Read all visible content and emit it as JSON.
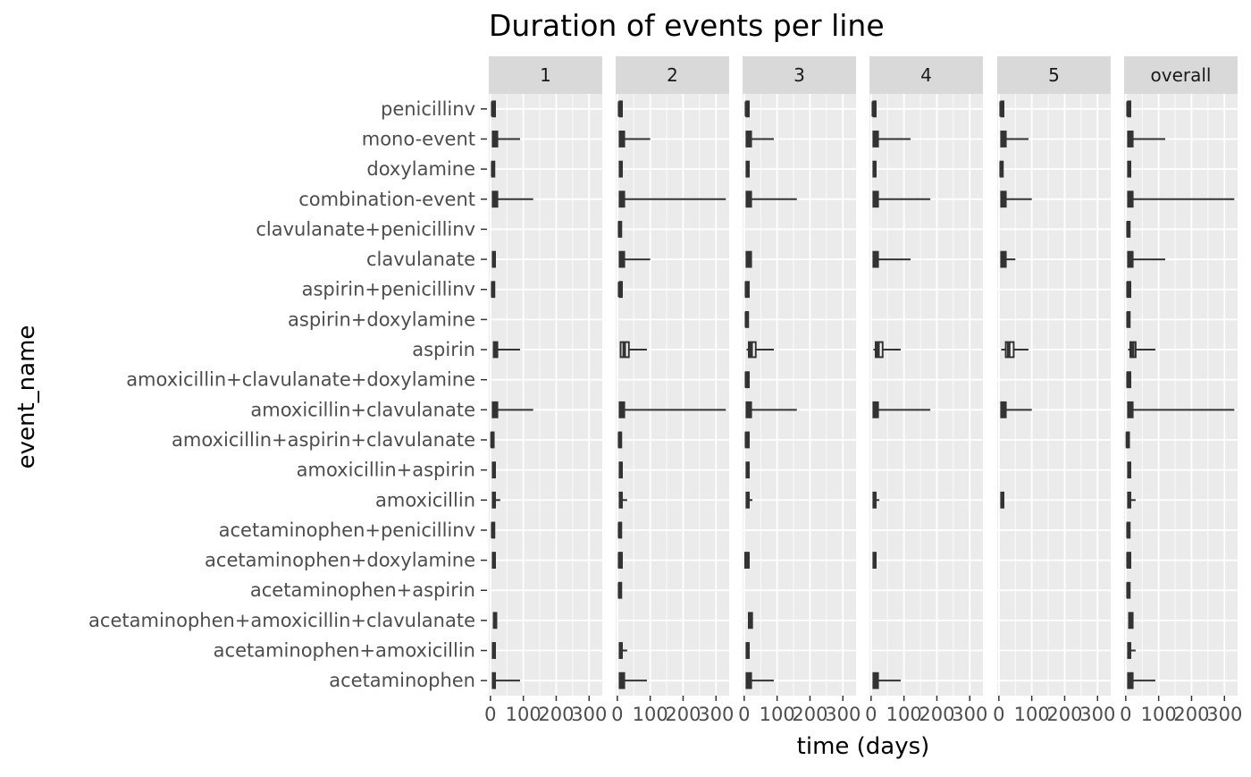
{
  "chart_data": {
    "type": "boxplot",
    "title": "Duration of events per line",
    "xlabel": "time (days)",
    "ylabel": "event_name",
    "xlim": [
      -5,
      340
    ],
    "x_ticks": [
      0,
      100,
      200,
      300
    ],
    "x_tick_labels": [
      "0",
      "100",
      "200",
      "300"
    ],
    "grid": true,
    "legend": "none",
    "colors": {
      "panel_bg": "#ebebeb",
      "strip_bg": "#d9d9d9",
      "grid_major": "#ffffff",
      "box_line": "#333333",
      "box_fill": "#ffffff"
    },
    "panels": [
      "1",
      "2",
      "3",
      "4",
      "5",
      "overall"
    ],
    "categories": [
      "penicillinv",
      "mono-event",
      "doxylamine",
      "combination-event",
      "clavulanate+penicillinv",
      "clavulanate",
      "aspirin+penicillinv",
      "aspirin+doxylamine",
      "aspirin",
      "amoxicillin+clavulanate+doxylamine",
      "amoxicillin+clavulanate",
      "amoxicillin+aspirin+clavulanate",
      "amoxicillin+aspirin",
      "amoxicillin",
      "acetaminophen+penicillinv",
      "acetaminophen+doxylamine",
      "acetaminophen+aspirin",
      "acetaminophen+amoxicillin+clavulanate",
      "acetaminophen+amoxicillin",
      "acetaminophen"
    ],
    "series": [
      {
        "panel": "1",
        "boxes": [
          {
            "category": "penicillinv",
            "min": 7,
            "q1": 7,
            "median": 7,
            "q3": 14,
            "max": 14
          },
          {
            "category": "mono-event",
            "min": 7,
            "q1": 7,
            "median": 14,
            "q3": 21,
            "max": 90
          },
          {
            "category": "doxylamine",
            "min": 5,
            "q1": 5,
            "median": 7,
            "q3": 12,
            "max": 12
          },
          {
            "category": "combination-event",
            "min": 7,
            "q1": 7,
            "median": 14,
            "q3": 21,
            "max": 130
          },
          {
            "category": "clavulanate",
            "min": 7,
            "q1": 7,
            "median": 10,
            "q3": 14,
            "max": 14
          },
          {
            "category": "aspirin+penicillinv",
            "min": 5,
            "q1": 5,
            "median": 7,
            "q3": 12,
            "max": 12
          },
          {
            "category": "aspirin",
            "min": 7,
            "q1": 10,
            "median": 14,
            "q3": 21,
            "max": 90
          },
          {
            "category": "amoxicillin+clavulanate",
            "min": 7,
            "q1": 7,
            "median": 14,
            "q3": 21,
            "max": 130
          },
          {
            "category": "amoxicillin+aspirin+clavulanate",
            "min": 3,
            "q1": 3,
            "median": 5,
            "q3": 10,
            "max": 10
          },
          {
            "category": "amoxicillin+aspirin",
            "min": 7,
            "q1": 7,
            "median": 10,
            "q3": 14,
            "max": 14
          },
          {
            "category": "amoxicillin",
            "min": 7,
            "q1": 7,
            "median": 10,
            "q3": 14,
            "max": 30
          },
          {
            "category": "acetaminophen+penicillinv",
            "min": 5,
            "q1": 5,
            "median": 7,
            "q3": 12,
            "max": 12
          },
          {
            "category": "acetaminophen+doxylamine",
            "min": 7,
            "q1": 7,
            "median": 10,
            "q3": 14,
            "max": 14
          },
          {
            "category": "acetaminophen+amoxicillin+clavulanate",
            "min": 10,
            "q1": 10,
            "median": 14,
            "q3": 18,
            "max": 18
          },
          {
            "category": "acetaminophen+amoxicillin",
            "min": 7,
            "q1": 7,
            "median": 10,
            "q3": 14,
            "max": 14
          },
          {
            "category": "acetaminophen",
            "min": 7,
            "q1": 7,
            "median": 10,
            "q3": 14,
            "max": 90
          }
        ]
      },
      {
        "panel": "2",
        "boxes": [
          {
            "category": "penicillinv",
            "min": 7,
            "q1": 7,
            "median": 7,
            "q3": 14,
            "max": 14
          },
          {
            "category": "mono-event",
            "min": 7,
            "q1": 7,
            "median": 14,
            "q3": 21,
            "max": 100
          },
          {
            "category": "doxylamine",
            "min": 7,
            "q1": 7,
            "median": 10,
            "q3": 14,
            "max": 14
          },
          {
            "category": "combination-event",
            "min": 7,
            "q1": 7,
            "median": 14,
            "q3": 21,
            "max": 330
          },
          {
            "category": "clavulanate+penicillinv",
            "min": 5,
            "q1": 5,
            "median": 7,
            "q3": 12,
            "max": 12
          },
          {
            "category": "clavulanate",
            "min": 7,
            "q1": 7,
            "median": 14,
            "q3": 21,
            "max": 100
          },
          {
            "category": "aspirin+penicillinv",
            "min": 7,
            "q1": 7,
            "median": 7,
            "q3": 14,
            "max": 14
          },
          {
            "category": "aspirin",
            "min": 7,
            "q1": 10,
            "median": 21,
            "q3": 35,
            "max": 90
          },
          {
            "category": "amoxicillin+clavulanate",
            "min": 7,
            "q1": 7,
            "median": 14,
            "q3": 21,
            "max": 330
          },
          {
            "category": "amoxicillin+aspirin+clavulanate",
            "min": 5,
            "q1": 5,
            "median": 7,
            "q3": 12,
            "max": 12
          },
          {
            "category": "amoxicillin+aspirin",
            "min": 7,
            "q1": 7,
            "median": 10,
            "q3": 14,
            "max": 14
          },
          {
            "category": "amoxicillin",
            "min": 7,
            "q1": 7,
            "median": 10,
            "q3": 14,
            "max": 30
          },
          {
            "category": "acetaminophen+penicillinv",
            "min": 5,
            "q1": 5,
            "median": 7,
            "q3": 12,
            "max": 12
          },
          {
            "category": "acetaminophen+doxylamine",
            "min": 5,
            "q1": 5,
            "median": 7,
            "q3": 14,
            "max": 14
          },
          {
            "category": "acetaminophen+aspirin",
            "min": 5,
            "q1": 5,
            "median": 7,
            "q3": 12,
            "max": 12
          },
          {
            "category": "acetaminophen+amoxicillin",
            "min": 7,
            "q1": 7,
            "median": 10,
            "q3": 14,
            "max": 30
          },
          {
            "category": "acetaminophen",
            "min": 7,
            "q1": 7,
            "median": 14,
            "q3": 21,
            "max": 90
          }
        ]
      },
      {
        "panel": "3",
        "boxes": [
          {
            "category": "penicillinv",
            "min": 7,
            "q1": 7,
            "median": 7,
            "q3": 14,
            "max": 14
          },
          {
            "category": "mono-event",
            "min": 7,
            "q1": 7,
            "median": 14,
            "q3": 21,
            "max": 90
          },
          {
            "category": "doxylamine",
            "min": 7,
            "q1": 7,
            "median": 10,
            "q3": 14,
            "max": 14
          },
          {
            "category": "combination-event",
            "min": 7,
            "q1": 7,
            "median": 14,
            "q3": 21,
            "max": 160
          },
          {
            "category": "clavulanate",
            "min": 7,
            "q1": 7,
            "median": 14,
            "q3": 21,
            "max": 21
          },
          {
            "category": "aspirin+penicillinv",
            "min": 5,
            "q1": 5,
            "median": 7,
            "q3": 14,
            "max": 14
          },
          {
            "category": "aspirin+doxylamine",
            "min": 5,
            "q1": 5,
            "median": 7,
            "q3": 12,
            "max": 12
          },
          {
            "category": "aspirin",
            "min": 7,
            "q1": 14,
            "median": 21,
            "q3": 35,
            "max": 90
          },
          {
            "category": "amoxicillin+clavulanate+doxylamine",
            "min": 5,
            "q1": 5,
            "median": 7,
            "q3": 14,
            "max": 14
          },
          {
            "category": "amoxicillin+clavulanate",
            "min": 7,
            "q1": 7,
            "median": 14,
            "q3": 21,
            "max": 160
          },
          {
            "category": "amoxicillin+aspirin+clavulanate",
            "min": 5,
            "q1": 5,
            "median": 7,
            "q3": 14,
            "max": 14
          },
          {
            "category": "amoxicillin+aspirin",
            "min": 7,
            "q1": 7,
            "median": 10,
            "q3": 14,
            "max": 14
          },
          {
            "category": "amoxicillin",
            "min": 7,
            "q1": 7,
            "median": 10,
            "q3": 14,
            "max": 25
          },
          {
            "category": "acetaminophen+doxylamine",
            "min": 3,
            "q1": 3,
            "median": 7,
            "q3": 14,
            "max": 14
          },
          {
            "category": "acetaminophen+amoxicillin+clavulanate",
            "min": 14,
            "q1": 14,
            "median": 18,
            "q3": 24,
            "max": 24
          },
          {
            "category": "acetaminophen+amoxicillin",
            "min": 7,
            "q1": 7,
            "median": 10,
            "q3": 14,
            "max": 14
          },
          {
            "category": "acetaminophen",
            "min": 7,
            "q1": 7,
            "median": 14,
            "q3": 21,
            "max": 90
          }
        ]
      },
      {
        "panel": "4",
        "boxes": [
          {
            "category": "penicillinv",
            "min": 7,
            "q1": 7,
            "median": 7,
            "q3": 14,
            "max": 14
          },
          {
            "category": "mono-event",
            "min": 7,
            "q1": 7,
            "median": 14,
            "q3": 21,
            "max": 120
          },
          {
            "category": "doxylamine",
            "min": 7,
            "q1": 7,
            "median": 10,
            "q3": 14,
            "max": 14
          },
          {
            "category": "combination-event",
            "min": 7,
            "q1": 7,
            "median": 14,
            "q3": 21,
            "max": 180
          },
          {
            "category": "clavulanate",
            "min": 7,
            "q1": 7,
            "median": 14,
            "q3": 21,
            "max": 120
          },
          {
            "category": "aspirin",
            "min": 7,
            "q1": 14,
            "median": 21,
            "q3": 35,
            "max": 90
          },
          {
            "category": "amoxicillin+clavulanate",
            "min": 7,
            "q1": 7,
            "median": 14,
            "q3": 21,
            "max": 180
          },
          {
            "category": "amoxicillin",
            "min": 7,
            "q1": 7,
            "median": 10,
            "q3": 14,
            "max": 25
          },
          {
            "category": "acetaminophen+doxylamine",
            "min": 7,
            "q1": 7,
            "median": 10,
            "q3": 14,
            "max": 14
          },
          {
            "category": "acetaminophen",
            "min": 7,
            "q1": 7,
            "median": 14,
            "q3": 21,
            "max": 90
          }
        ]
      },
      {
        "panel": "5",
        "boxes": [
          {
            "category": "penicillinv",
            "min": 7,
            "q1": 7,
            "median": 7,
            "q3": 14,
            "max": 14
          },
          {
            "category": "mono-event",
            "min": 7,
            "q1": 7,
            "median": 14,
            "q3": 21,
            "max": 90
          },
          {
            "category": "doxylamine",
            "min": 5,
            "q1": 5,
            "median": 7,
            "q3": 12,
            "max": 12
          },
          {
            "category": "combination-event",
            "min": 7,
            "q1": 7,
            "median": 14,
            "q3": 21,
            "max": 100
          },
          {
            "category": "clavulanate",
            "min": 7,
            "q1": 7,
            "median": 14,
            "q3": 21,
            "max": 50
          },
          {
            "category": "aspirin",
            "min": 7,
            "q1": 21,
            "median": 30,
            "q3": 45,
            "max": 90
          },
          {
            "category": "amoxicillin+clavulanate",
            "min": 7,
            "q1": 7,
            "median": 14,
            "q3": 21,
            "max": 100
          },
          {
            "category": "amoxicillin",
            "min": 7,
            "q1": 7,
            "median": 10,
            "q3": 14,
            "max": 14
          }
        ]
      },
      {
        "panel": "overall",
        "boxes": [
          {
            "category": "penicillinv",
            "min": 7,
            "q1": 7,
            "median": 7,
            "q3": 14,
            "max": 14
          },
          {
            "category": "mono-event",
            "min": 7,
            "q1": 7,
            "median": 14,
            "q3": 21,
            "max": 120
          },
          {
            "category": "doxylamine",
            "min": 7,
            "q1": 7,
            "median": 10,
            "q3": 14,
            "max": 14
          },
          {
            "category": "combination-event",
            "min": 7,
            "q1": 7,
            "median": 14,
            "q3": 21,
            "max": 330
          },
          {
            "category": "clavulanate+penicillinv",
            "min": 5,
            "q1": 5,
            "median": 7,
            "q3": 12,
            "max": 12
          },
          {
            "category": "clavulanate",
            "min": 7,
            "q1": 7,
            "median": 14,
            "q3": 21,
            "max": 120
          },
          {
            "category": "aspirin+penicillinv",
            "min": 5,
            "q1": 5,
            "median": 7,
            "q3": 14,
            "max": 14
          },
          {
            "category": "aspirin+doxylamine",
            "min": 5,
            "q1": 5,
            "median": 7,
            "q3": 12,
            "max": 12
          },
          {
            "category": "aspirin",
            "min": 7,
            "q1": 14,
            "median": 21,
            "q3": 30,
            "max": 90
          },
          {
            "category": "amoxicillin+clavulanate+doxylamine",
            "min": 5,
            "q1": 5,
            "median": 7,
            "q3": 14,
            "max": 14
          },
          {
            "category": "amoxicillin+clavulanate",
            "min": 7,
            "q1": 7,
            "median": 14,
            "q3": 21,
            "max": 330
          },
          {
            "category": "amoxicillin+aspirin+clavulanate",
            "min": 3,
            "q1": 3,
            "median": 5,
            "q3": 10,
            "max": 10
          },
          {
            "category": "amoxicillin+aspirin",
            "min": 7,
            "q1": 7,
            "median": 10,
            "q3": 14,
            "max": 14
          },
          {
            "category": "amoxicillin",
            "min": 7,
            "q1": 7,
            "median": 10,
            "q3": 14,
            "max": 30
          },
          {
            "category": "acetaminophen+penicillinv",
            "min": 5,
            "q1": 5,
            "median": 7,
            "q3": 12,
            "max": 12
          },
          {
            "category": "acetaminophen+doxylamine",
            "min": 5,
            "q1": 5,
            "median": 7,
            "q3": 14,
            "max": 14
          },
          {
            "category": "acetaminophen+aspirin",
            "min": 5,
            "q1": 5,
            "median": 7,
            "q3": 12,
            "max": 12
          },
          {
            "category": "acetaminophen+amoxicillin+clavulanate",
            "min": 10,
            "q1": 10,
            "median": 14,
            "q3": 21,
            "max": 21
          },
          {
            "category": "acetaminophen+amoxicillin",
            "min": 7,
            "q1": 7,
            "median": 10,
            "q3": 14,
            "max": 30
          },
          {
            "category": "acetaminophen",
            "min": 7,
            "q1": 7,
            "median": 14,
            "q3": 21,
            "max": 90
          }
        ]
      }
    ]
  }
}
